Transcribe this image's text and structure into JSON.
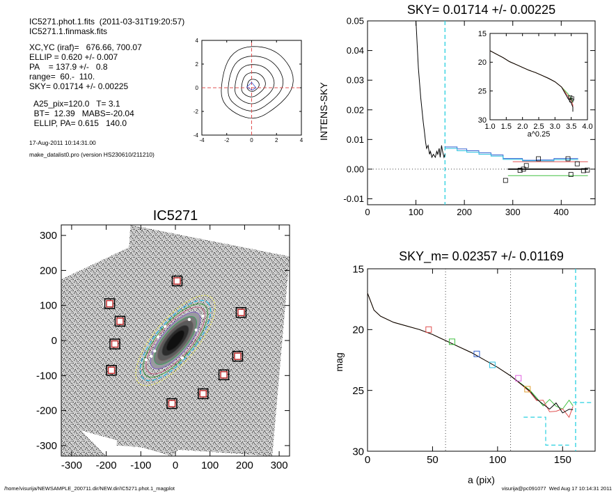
{
  "info": {
    "lines1": [
      "IC5271.phot.1.fits  (2011-03-31T19:20:57)",
      "IC5271.1.finmask.fits"
    ],
    "lines2": [
      "XC,YC (iraf)=   676.66, 700.07",
      "ELLIP = 0.620 +/- 0.007",
      "PA    = 137.9 +/-   0.8",
      "range=  60.-  110.",
      "SKY= 0.01714 +/- 0.00225"
    ],
    "lines3": [
      "  A25_pix=120.0   T= 3.1",
      "  BT=  12.39   MABS=-20.04",
      "  ELLIP, PA= 0.615   140.0"
    ],
    "lines4": [
      "17-Aug-2011 10:14:31.00",
      "make_datalist0.pro (version HS230610/211210)"
    ]
  },
  "footer": {
    "left": "/home/visurija/NEWSAMPLE_200711.dir/NEW.dir/IC5271.phot.1_magplot",
    "right": "visurija@pc091077  Wed Aug 17 10:14:31 2011"
  },
  "chart_data": [
    {
      "id": "contour",
      "type": "line",
      "title": "",
      "xlim": [
        -4,
        4
      ],
      "ylim": [
        -4,
        4
      ],
      "xticks": [
        -4,
        -2,
        0,
        2,
        4
      ],
      "yticks": [
        -4,
        -2,
        0,
        2,
        4
      ],
      "contours": [
        {
          "cx": 0.1,
          "cy": 0.2,
          "rx": 0.45,
          "ry": 0.55,
          "rot": -30
        },
        {
          "cx": 0.1,
          "cy": 0.25,
          "rx": 0.9,
          "ry": 1.1,
          "rot": -30
        },
        {
          "cx": 0.15,
          "cy": 0.3,
          "rx": 1.5,
          "ry": 1.75,
          "rot": -30
        },
        {
          "cx": 0.2,
          "cy": 0.35,
          "rx": 2.1,
          "ry": 2.45,
          "rot": -30
        },
        {
          "cx": 0.3,
          "cy": 0.45,
          "rx": 2.75,
          "ry": 3.2,
          "rot": -30
        }
      ],
      "colors": {
        "lines": "#000000",
        "cross": "#e05050",
        "center": "#3050d0"
      }
    },
    {
      "id": "sky",
      "type": "line",
      "title": "SKY= 0.01714 +/- 0.00225",
      "xlabel": "",
      "ylabel": "INTENS-SKY",
      "xlim": [
        0,
        470
      ],
      "ylim": [
        -0.012,
        0.05
      ],
      "xticks": [
        0,
        100,
        200,
        300,
        400
      ],
      "yticks": [
        -0.01,
        0.0,
        0.01,
        0.02,
        0.03,
        0.04,
        0.05
      ],
      "ytick_labels": [
        "-0.01",
        "0.00",
        "0.01",
        "0.02",
        "0.03",
        "0.04",
        "0.05"
      ],
      "vline": 160,
      "profile_x": [
        100,
        105,
        110,
        115,
        118,
        120,
        122,
        125,
        128,
        130,
        133,
        136,
        140,
        143,
        145,
        148,
        150,
        153,
        155,
        158,
        160
      ],
      "profile_y": [
        0.05,
        0.034,
        0.024,
        0.016,
        0.012,
        0.009,
        0.007,
        0.008,
        0.005,
        0.006,
        0.004,
        0.005,
        0.004,
        0.006,
        0.005,
        0.007,
        0.004,
        0.008,
        0.006,
        0.004,
        0.005
      ],
      "steps": [
        {
          "name": "blue",
          "color": "#3060d0",
          "x": [
            160,
            185,
            205,
            230,
            255,
            280,
            320,
            350,
            385,
            420
          ],
          "y": [
            0.0075,
            0.0068,
            0.0062,
            0.0055,
            0.0048,
            0.0036,
            0.003,
            0.0031,
            0.0036,
            0.0036
          ]
        },
        {
          "name": "cyan",
          "color": "#28c0e0",
          "x": [
            160,
            185,
            205,
            230,
            255,
            280,
            320,
            350,
            385,
            420
          ],
          "y": [
            0.007,
            0.0062,
            0.0057,
            0.005,
            0.0044,
            0.0033,
            0.0028,
            0.0028,
            0.0032,
            0.0032
          ]
        },
        {
          "name": "black",
          "x": [
            290,
            455
          ],
          "y": [
            0.0,
            0.0
          ],
          "color": "#000000"
        },
        {
          "name": "red",
          "x": [
            300,
            455
          ],
          "y": [
            0.0025,
            0.0025
          ],
          "color": "#e05050"
        },
        {
          "name": "green",
          "x": [
            290,
            455
          ],
          "y": [
            -0.0022,
            -0.0022
          ],
          "color": "#40c040"
        }
      ],
      "squares_x": [
        285,
        315,
        322,
        328,
        353,
        414,
        420,
        433,
        446,
        454
      ],
      "squares_y": [
        -0.0038,
        -0.0004,
        0.0,
        0.0012,
        0.0035,
        0.0035,
        -0.0018,
        0.0018,
        -0.0005,
        -0.0003
      ],
      "inset": {
        "xlabel": "a^0.25",
        "xlim": [
          1.0,
          4.0
        ],
        "ylim": [
          15,
          30
        ],
        "xticks": [
          1.0,
          1.5,
          2.0,
          2.5,
          3.0,
          3.5,
          4.0
        ],
        "xtick_labels": [
          "1.0",
          "1.5",
          "2.0",
          "2.5",
          "3.0",
          "3.5",
          "4.0"
        ],
        "yticks": [
          15,
          20,
          25,
          30
        ],
        "x": [
          1.0,
          1.2,
          1.4,
          1.6,
          1.8,
          2.0,
          2.2,
          2.4,
          2.6,
          2.8,
          3.0,
          3.2,
          3.4,
          3.5,
          3.55
        ],
        "y": [
          18.0,
          18.6,
          19.2,
          19.9,
          20.4,
          20.9,
          21.4,
          21.8,
          22.3,
          22.8,
          23.4,
          24.3,
          25.5,
          26.3,
          27.0
        ],
        "colors": [
          "#40c040",
          "#e05050",
          "#000000"
        ]
      }
    },
    {
      "id": "image",
      "type": "scatter",
      "title": "IC5271",
      "xlim": [
        -330,
        330
      ],
      "ylim": [
        -330,
        330
      ],
      "xticks": [
        -300,
        -200,
        -100,
        0,
        100,
        200,
        300
      ],
      "yticks": [
        -300,
        -200,
        -100,
        0,
        100,
        200,
        300
      ],
      "galaxy": {
        "cx": 0,
        "cy": 0,
        "a": 120,
        "b": 46,
        "pa_deg": 50
      },
      "stars_x": [
        0,
        188,
        -165,
        -180,
        180,
        -185,
        138,
        80,
        -10,
        -200,
        -190
      ],
      "stars_y": [
        170,
        80,
        55,
        -10,
        -45,
        -85,
        -98,
        -152,
        -180,
        105,
        105
      ],
      "markers": [
        {
          "x": 5,
          "y": 170
        },
        {
          "x": -190,
          "y": 105
        },
        {
          "x": 190,
          "y": 80
        },
        {
          "x": -160,
          "y": 55
        },
        {
          "x": -175,
          "y": -10
        },
        {
          "x": 180,
          "y": -45
        },
        {
          "x": -185,
          "y": -85
        },
        {
          "x": 140,
          "y": -98
        },
        {
          "x": 80,
          "y": -152
        },
        {
          "x": -10,
          "y": -180
        }
      ]
    },
    {
      "id": "mag",
      "type": "line",
      "title": "SKY_m=  0.02357 +/- 0.01169",
      "xlabel": "a (pix)",
      "ylabel": "mag",
      "xlim": [
        0,
        175
      ],
      "ylim": [
        15,
        30
      ],
      "xticks": [
        0,
        50,
        100,
        150
      ],
      "yticks": [
        15,
        20,
        25,
        30
      ],
      "vlines_dotted": [
        60,
        110
      ],
      "vline_cyan": [
        160
      ],
      "x": [
        0,
        5,
        10,
        20,
        30,
        40,
        50,
        60,
        70,
        80,
        90,
        100,
        110,
        120,
        125,
        130,
        135,
        140,
        145,
        150,
        155,
        158
      ],
      "y": [
        17.0,
        18.4,
        18.9,
        19.4,
        19.7,
        20.0,
        20.4,
        20.9,
        21.4,
        21.9,
        22.5,
        23.1,
        23.8,
        24.6,
        25.0,
        25.6,
        25.9,
        26.1,
        26.2,
        26.3,
        26.2,
        26.0
      ],
      "variants": [
        {
          "color": "#40c040",
          "dy": 0.0
        },
        {
          "color": "#e05050",
          "dy": 0.7
        },
        {
          "color": "#000000",
          "dy": 0.35
        }
      ],
      "squares": [
        {
          "x": 47,
          "y": 20.0,
          "color": "#e05050"
        },
        {
          "x": 65,
          "y": 21.0,
          "color": "#40c040"
        },
        {
          "x": 84,
          "y": 22.0,
          "color": "#3060d0"
        },
        {
          "x": 96,
          "y": 22.9,
          "color": "#28c0e0"
        },
        {
          "x": 116,
          "y": 24.0,
          "color": "#e060e0"
        },
        {
          "x": 123,
          "y": 24.9,
          "color": "#e0a030"
        }
      ]
    }
  ]
}
